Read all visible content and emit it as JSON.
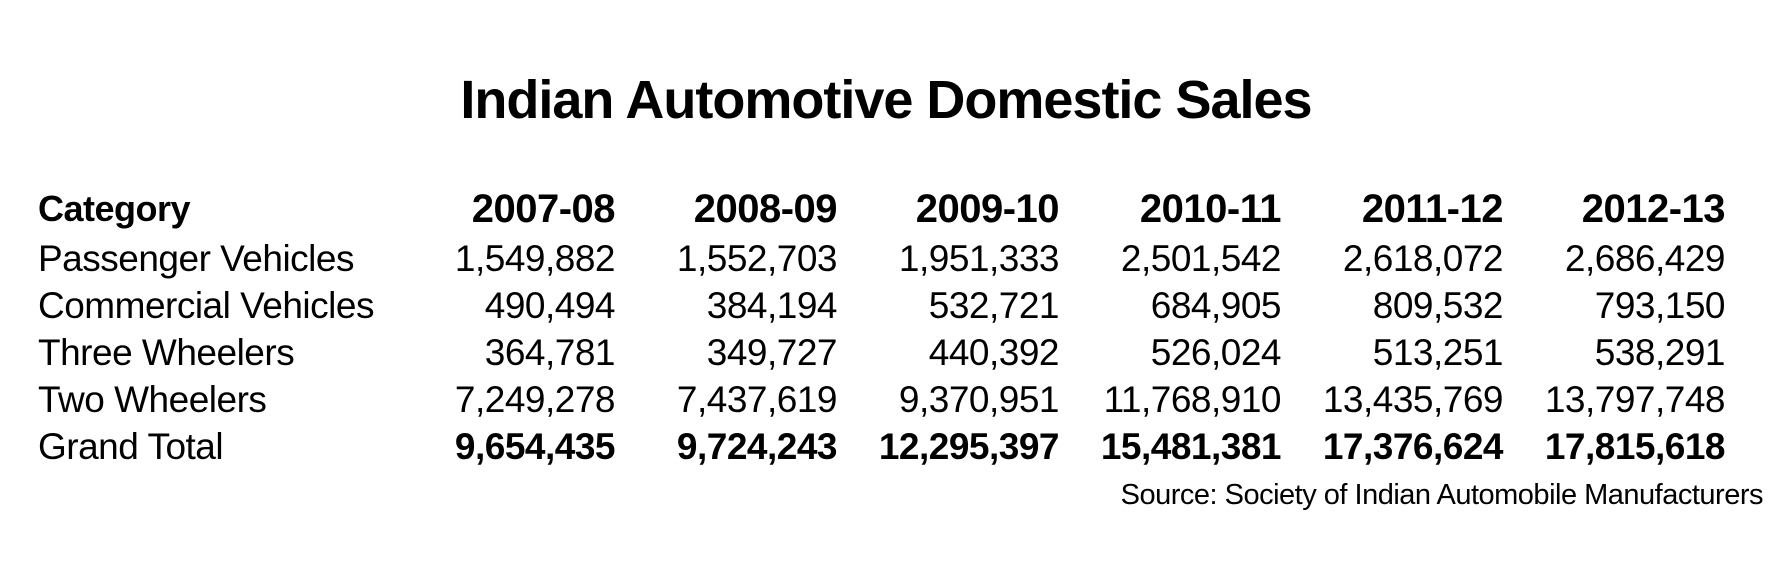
{
  "title": "Indian Automotive Domestic Sales",
  "table": {
    "category_header": "Category",
    "year_headers": [
      "2007-08",
      "2008-09",
      "2009-10",
      "2010-11",
      "2011-12",
      "2012-13"
    ],
    "rows": [
      {
        "category": "Passenger Vehicles",
        "values": [
          "1,549,882",
          "1,552,703",
          "1,951,333",
          "2,501,542",
          "2,618,072",
          "2,686,429"
        ]
      },
      {
        "category": "Commercial Vehicles",
        "values": [
          "490,494",
          "384,194",
          "532,721",
          "684,905",
          "809,532",
          "793,150"
        ]
      },
      {
        "category": "Three Wheelers",
        "values": [
          "364,781",
          "349,727",
          "440,392",
          "526,024",
          "513,251",
          "538,291"
        ]
      },
      {
        "category": "Two Wheelers",
        "values": [
          "7,249,278",
          "7,437,619",
          "9,370,951",
          "11,768,910",
          "13,435,769",
          "13,797,748"
        ]
      },
      {
        "category": "Grand Total",
        "values": [
          "9,654,435",
          "9,724,243",
          "12,295,397",
          "15,481,381",
          "17,376,624",
          "17,815,618"
        ]
      }
    ]
  },
  "source_note": "Source: Society of Indian Automobile Manufacturers",
  "colors": {
    "text": "#000000",
    "background": "#ffffff"
  },
  "chart_data": {
    "type": "table",
    "title": "Indian Automotive Domestic Sales",
    "categories": [
      "2007-08",
      "2008-09",
      "2009-10",
      "2010-11",
      "2011-12",
      "2012-13"
    ],
    "series": [
      {
        "name": "Passenger Vehicles",
        "values": [
          1549882,
          1552703,
          1951333,
          2501542,
          2618072,
          2686429
        ]
      },
      {
        "name": "Commercial Vehicles",
        "values": [
          490494,
          384194,
          532721,
          684905,
          809532,
          793150
        ]
      },
      {
        "name": "Three Wheelers",
        "values": [
          364781,
          349727,
          440392,
          526024,
          513251,
          538291
        ]
      },
      {
        "name": "Two Wheelers",
        "values": [
          7249278,
          7437619,
          9370951,
          11768910,
          13435769,
          13797748
        ]
      },
      {
        "name": "Grand Total",
        "values": [
          9654435,
          9724243,
          12295397,
          15481381,
          17376624,
          17815618
        ]
      }
    ],
    "row_header_label": "Category",
    "source": "Source: Society of Indian Automobile Manufacturers",
    "layout": {
      "grid": false,
      "borders": false,
      "number_alignment": "right",
      "bold_rows": [
        "header",
        "Grand Total values"
      ]
    }
  }
}
